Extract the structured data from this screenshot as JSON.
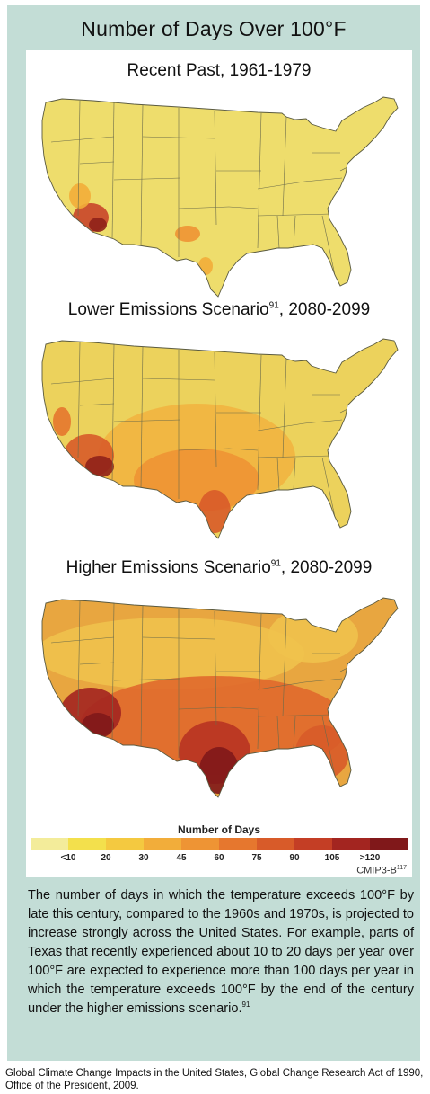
{
  "title": "Number of Days Over 100°F",
  "maps": [
    {
      "title": "Recent Past, 1961-1979",
      "sup": "",
      "suffix": "",
      "intensity": 0
    },
    {
      "title": "Lower Emissions Scenario",
      "sup": "91",
      "suffix": ", 2080-2099",
      "intensity": 1
    },
    {
      "title": "Higher Emissions Scenario",
      "sup": "91",
      "suffix": ", 2080-2099",
      "intensity": 2
    }
  ],
  "legend": {
    "title": "Number of Days",
    "labels": [
      "<10",
      "20",
      "30",
      "45",
      "60",
      "75",
      "90",
      "105",
      ">120"
    ],
    "colors": [
      "#f3ec9a",
      "#f3e04c",
      "#f4c940",
      "#f2ad3a",
      "#ee9434",
      "#e6772e",
      "#d85b29",
      "#c43e25",
      "#a32520",
      "#80181a"
    ]
  },
  "source": {
    "label": "CMIP3-B",
    "sup": "117"
  },
  "caption": {
    "text": "The number of days in which the temperature exceeds 100°F by late this century, compared to the 1960s and 1970s, is projected to increase strongly across the United States. For example, parts of Texas that recently experienced about 10 to 20 days per year over 100°F are expected to experience more than 100 days per year in which the temperature exceeds 100°F by the end of the century under the higher emissions scenario.",
    "sup": "91"
  },
  "citation": "Global Climate Change Impacts in the United States, Global Change Research Act of 1990, Office of the President, 2009."
}
